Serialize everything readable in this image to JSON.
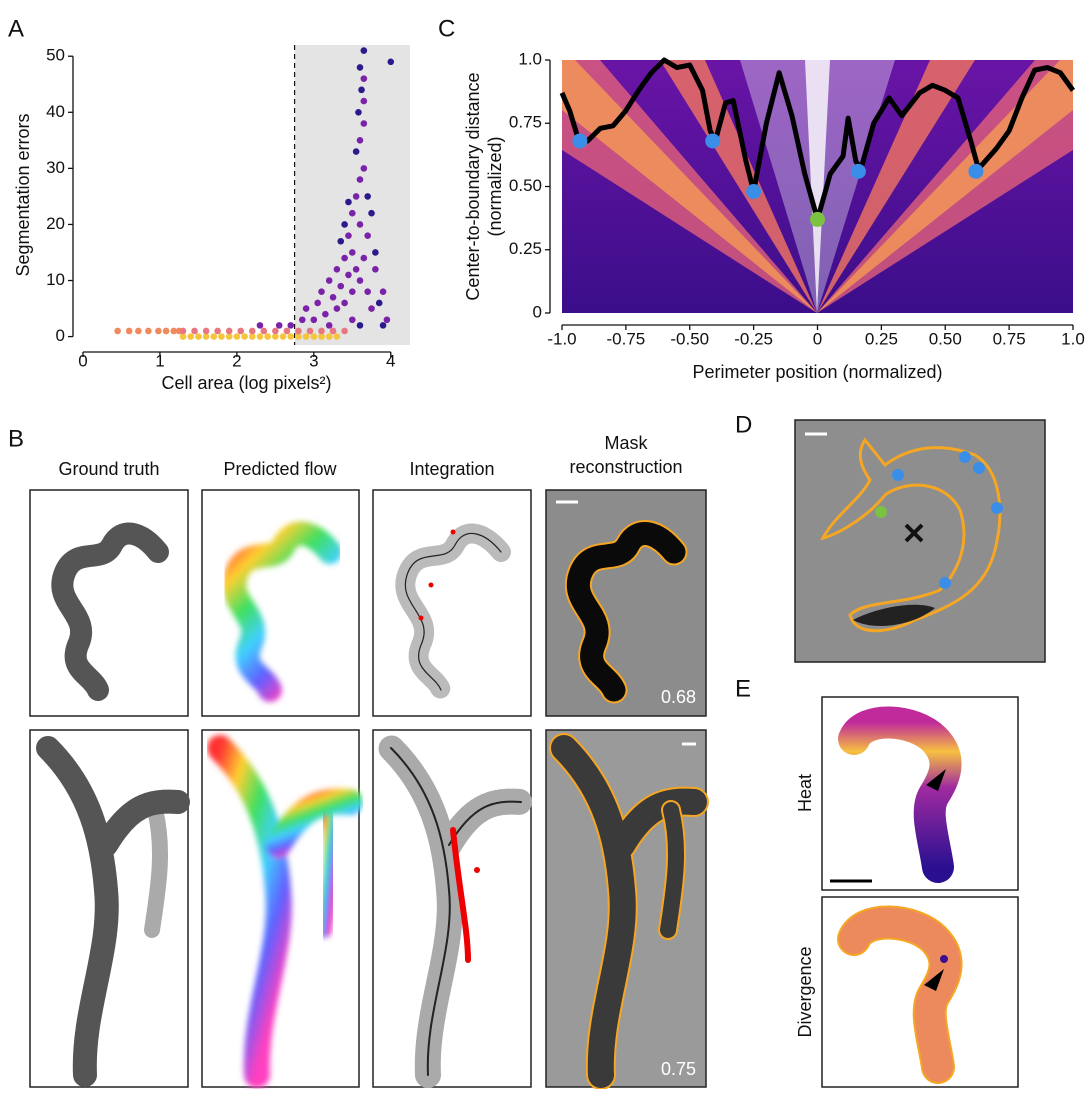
{
  "panel_labels": [
    "A",
    "B",
    "C",
    "D",
    "E"
  ],
  "chart_data": [
    {
      "type": "scatter",
      "xlabel": "Cell area (log pixels²)",
      "ylabel": "Segmentation errors",
      "xlim": [
        0,
        4.25
      ],
      "ylim": [
        -1.5,
        52
      ],
      "xticks": [
        0,
        1,
        2,
        3,
        4
      ],
      "yticks": [
        0,
        10,
        20,
        30,
        40,
        50
      ],
      "threshold": 2.75,
      "series": [
        {
          "color": "#f0895c",
          "x": [
            0.45,
            0.6,
            0.72,
            0.85,
            0.98,
            1.08,
            1.18,
            1.25
          ],
          "values": [
            1,
            1,
            1,
            1,
            1,
            1,
            1,
            1
          ]
        },
        {
          "color": "#f7c43e",
          "x": [
            1.3,
            1.4,
            1.5,
            1.6,
            1.7,
            1.8,
            1.9,
            2.0,
            2.1,
            2.2,
            2.3,
            2.4,
            2.5,
            2.6,
            2.7,
            2.8,
            2.9,
            3.0,
            3.1,
            3.2,
            3.3
          ],
          "values": [
            0,
            0,
            0,
            0,
            0,
            0,
            0,
            0,
            0,
            0,
            0,
            0,
            0,
            0,
            0,
            0,
            0,
            0,
            0,
            0,
            0
          ]
        },
        {
          "color": "#e8787f",
          "x": [
            1.3,
            1.45,
            1.6,
            1.75,
            1.9,
            2.05,
            2.2,
            2.35,
            2.5,
            2.65,
            2.8,
            2.95,
            3.1,
            3.25,
            3.4
          ],
          "values": [
            1,
            1,
            1,
            1,
            1,
            1,
            1,
            1,
            1,
            1,
            1,
            1,
            1,
            1,
            1
          ]
        },
        {
          "color": "#7a22a8",
          "x": [
            2.3,
            2.55,
            2.7,
            2.85,
            2.9,
            3.0,
            3.05,
            3.1,
            3.15,
            3.2,
            3.25,
            3.3,
            3.3,
            3.35,
            3.4,
            3.4,
            3.45,
            3.45,
            3.5,
            3.5,
            3.5,
            3.55,
            3.55,
            3.6,
            3.6,
            3.6,
            3.6,
            3.65,
            3.65,
            3.65,
            3.65,
            3.65,
            3.7,
            3.7,
            3.75,
            3.8,
            3.9,
            3.95,
            3.5,
            3.2
          ],
          "values": [
            2,
            2,
            2,
            3,
            5,
            3,
            6,
            8,
            4,
            10,
            7,
            12,
            5,
            9,
            14,
            6,
            11,
            18,
            8,
            15,
            22,
            12,
            25,
            10,
            20,
            28,
            35,
            14,
            30,
            38,
            42,
            46,
            18,
            8,
            5,
            12,
            8,
            3,
            3,
            2
          ]
        },
        {
          "color": "#2b1a8c",
          "x": [
            3.65,
            4.0,
            3.55,
            3.45,
            3.7,
            3.8,
            3.35,
            3.6,
            3.62,
            3.58,
            3.4,
            3.75,
            3.85,
            3.9,
            3.6
          ],
          "values": [
            51,
            49,
            33,
            24,
            25,
            15,
            17,
            48,
            44,
            40,
            20,
            22,
            6,
            2,
            2
          ]
        }
      ]
    },
    {
      "type": "line",
      "xlabel": "Perimeter position (normalized)",
      "ylabel": [
        "Center-to-boundary distance",
        "(normalized)"
      ],
      "xlim": [
        -1,
        1
      ],
      "ylim": [
        0,
        1
      ],
      "xticks": [
        {
          "value": -1,
          "label": "-1.0"
        },
        -0.75,
        {
          "value": -0.5,
          "label": "-0.50"
        },
        -0.25,
        0,
        0.25,
        {
          "value": 0.5,
          "label": "0.50"
        },
        0.75,
        {
          "value": 1,
          "label": "1.0"
        }
      ],
      "yticks": [
        0,
        0.25,
        {
          "value": 0.5,
          "label": "0.50"
        },
        0.75,
        {
          "value": 1,
          "label": "1.0"
        }
      ],
      "series": [
        {
          "color": "#000000",
          "x": [
            -1.0,
            -0.97,
            -0.94,
            -0.9,
            -0.85,
            -0.8,
            -0.75,
            -0.7,
            -0.65,
            -0.6,
            -0.55,
            -0.5,
            -0.45,
            -0.42,
            -0.4,
            -0.36,
            -0.33,
            -0.28,
            -0.25,
            -0.2,
            -0.15,
            -0.1,
            -0.05,
            0,
            0.05,
            0.1,
            0.12,
            0.15,
            0.17,
            0.22,
            0.28,
            0.33,
            0.4,
            0.45,
            0.5,
            0.55,
            0.6,
            0.63,
            0.7,
            0.75,
            0.8,
            0.85,
            0.9,
            0.95,
            1.0
          ],
          "values": [
            0.87,
            0.8,
            0.7,
            0.68,
            0.73,
            0.74,
            0.8,
            0.88,
            0.95,
            1.0,
            0.97,
            0.98,
            0.88,
            0.72,
            0.68,
            0.83,
            0.84,
            0.6,
            0.48,
            0.75,
            0.95,
            0.78,
            0.55,
            0.37,
            0.55,
            0.62,
            0.77,
            0.6,
            0.57,
            0.75,
            0.85,
            0.78,
            0.87,
            0.9,
            0.88,
            0.85,
            0.68,
            0.57,
            0.65,
            0.72,
            0.85,
            0.96,
            0.97,
            0.95,
            0.88
          ]
        }
      ],
      "points": [
        {
          "color": "#3b8ee8",
          "x": [
            -0.93,
            -0.41,
            -0.25,
            0.16,
            0.62
          ],
          "values": [
            0.68,
            0.68,
            0.48,
            0.56,
            0.56
          ]
        },
        {
          "color": "#7cc242",
          "x": [
            0
          ],
          "values": [
            0.37
          ]
        }
      ]
    }
  ],
  "panel_b": {
    "columns": [
      "Ground truth",
      "Predicted flow",
      "Integration",
      [
        "Mask",
        "reconstruction"
      ]
    ],
    "scores": [
      0.68,
      0.75
    ]
  },
  "panel_e": {
    "rows": [
      "Heat",
      "Divergence"
    ]
  }
}
